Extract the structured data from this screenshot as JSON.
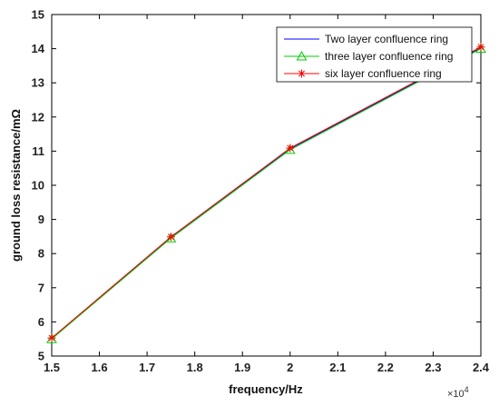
{
  "chart_data": {
    "type": "line",
    "xlabel": "frequency/Hz",
    "ylabel": "ground loss resistance/mΩ",
    "x_exponent_label": "×10",
    "x_exponent_power": "4",
    "xlim": [
      1.5,
      2.4
    ],
    "ylim": [
      5,
      15
    ],
    "xticks": [
      "1.5",
      "1.6",
      "1.7",
      "1.8",
      "1.9",
      "2",
      "2.1",
      "2.2",
      "2.3",
      "2.4"
    ],
    "yticks": [
      "5",
      "6",
      "7",
      "8",
      "9",
      "10",
      "11",
      "12",
      "13",
      "14",
      "15"
    ],
    "grid": false,
    "legend_position": "top-right",
    "series": [
      {
        "name": "Two layer confluence ring",
        "color": "#0000ff",
        "marker": "none",
        "x": [
          1.5,
          1.75,
          2.0,
          2.4
        ],
        "y": [
          5.52,
          8.48,
          11.07,
          14.02
        ]
      },
      {
        "name": "three layer confluence ring",
        "color": "#00cc00",
        "marker": "triangle",
        "x": [
          1.5,
          1.75,
          2.0,
          2.4
        ],
        "y": [
          5.5,
          8.45,
          11.04,
          14.0
        ]
      },
      {
        "name": "six layer confluence ring",
        "color": "#ff0000",
        "marker": "asterisk",
        "x": [
          1.5,
          1.75,
          2.0,
          2.4
        ],
        "y": [
          5.53,
          8.49,
          11.09,
          14.05
        ]
      }
    ]
  }
}
